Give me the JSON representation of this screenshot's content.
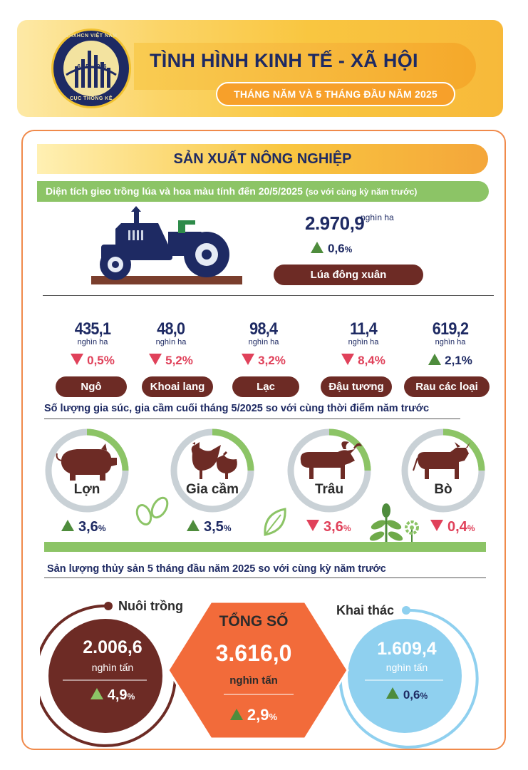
{
  "header": {
    "title": "TÌNH HÌNH KINH TẾ - XÃ HỘI",
    "subtitle": "THÁNG NĂM VÀ 5 THÁNG ĐẦU NĂM 2025",
    "seal": {
      "top_text": "CHXHCN VIỆT NAM",
      "year_text": "6 - 5 - 1946",
      "bottom_text": "CỤC THỐNG KÊ"
    }
  },
  "section": {
    "title": "SẢN XUẤT NÔNG NGHIỆP",
    "planting_heading": "Diện tích gieo trồng lúa và hoa màu tính đến 20/5/2025",
    "planting_heading_note": "(so với cùng kỳ năm trước)"
  },
  "rice": {
    "value": "2.970,9",
    "unit": "nghìn ha",
    "change": "0,6",
    "change_unit": "%",
    "direction": "up",
    "label": "Lúa đông xuân"
  },
  "crops": [
    {
      "value": "435,1",
      "unit": "nghìn ha",
      "change": "0,5%",
      "direction": "down",
      "label": "Ngô"
    },
    {
      "value": "48,0",
      "unit": "nghìn ha",
      "change": "5,2%",
      "direction": "down",
      "label": "Khoai lang"
    },
    {
      "value": "98,4",
      "unit": "nghìn ha",
      "change": "3,2%",
      "direction": "down",
      "label": "Lạc"
    },
    {
      "value": "11,4",
      "unit": "nghìn ha",
      "change": "8,4%",
      "direction": "down",
      "label": "Đậu tương"
    },
    {
      "value": "619,2",
      "unit": "nghìn ha",
      "change": "2,1%",
      "direction": "up",
      "label": "Rau các loại"
    }
  ],
  "livestock_heading": "Số lượng gia súc, gia cầm cuối tháng 5/2025 so với cùng thời điểm năm trước",
  "livestock": [
    {
      "label": "Lợn",
      "change": "3,6",
      "unit": "%",
      "direction": "up",
      "icon": "pig-icon"
    },
    {
      "label": "Gia cầm",
      "change": "3,5",
      "unit": "%",
      "direction": "up",
      "icon": "poultry-icon"
    },
    {
      "label": "Trâu",
      "change": "3,6",
      "unit": "%",
      "direction": "down",
      "icon": "buffalo-icon"
    },
    {
      "label": "Bò",
      "change": "0,4",
      "unit": "%",
      "direction": "down",
      "icon": "cow-icon"
    }
  ],
  "fishery_heading": "Sản lượng thủy sản 5 tháng đầu năm 2025 so với cùng kỳ năm trước",
  "fishery": {
    "aquaculture": {
      "label": "Nuôi trồng",
      "value": "2.006,6",
      "unit": "nghìn tấn",
      "change": "4,9",
      "change_unit": "%",
      "direction": "up"
    },
    "total": {
      "label": "TỔNG SỐ",
      "value": "3.616,0",
      "unit": "nghìn tấn",
      "change": "2,9",
      "change_unit": "%",
      "direction": "up"
    },
    "capture": {
      "label": "Khai thác",
      "value": "1.609,4",
      "unit": "nghìn tấn",
      "change": "0,6",
      "change_unit": "%",
      "direction": "up"
    }
  },
  "colors": {
    "navy": "#1e2a63",
    "brown": "#6d2b25",
    "green": "#8cc466",
    "up_green": "#4e8c3c",
    "down_red": "#e0415a",
    "orange": "#f26b3a",
    "light_blue": "#8fd0ef",
    "ring_grey": "#c9d1d6"
  }
}
